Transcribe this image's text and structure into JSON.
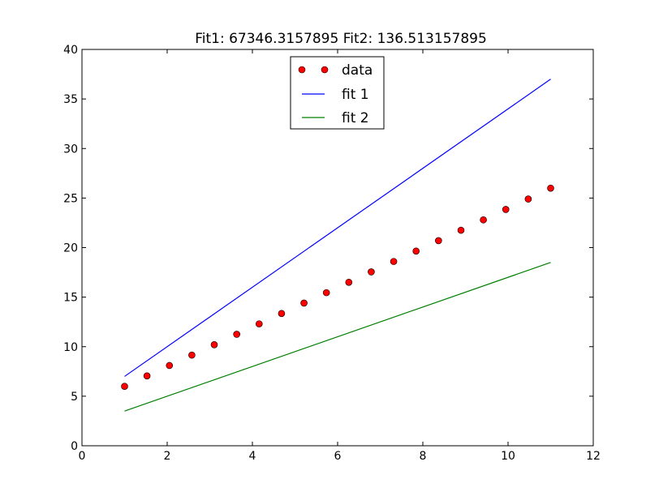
{
  "chart_data": {
    "type": "line",
    "title": "Fit1: 67346.3157895 Fit2: 136.513157895",
    "xlabel": "",
    "ylabel": "",
    "xlim": [
      0,
      12
    ],
    "ylim": [
      0,
      40
    ],
    "x_ticks": [
      0,
      2,
      4,
      6,
      8,
      10,
      12
    ],
    "x_tick_labels": [
      "0",
      "2",
      "4",
      "6",
      "8",
      "10",
      "12"
    ],
    "y_ticks": [
      0,
      5,
      10,
      15,
      20,
      25,
      30,
      35,
      40
    ],
    "y_tick_labels": [
      "0",
      "5",
      "10",
      "15",
      "20",
      "25",
      "30",
      "35",
      "40"
    ],
    "grid": false,
    "legend_position": "top-center",
    "series": [
      {
        "name": "data",
        "style": "markers",
        "color": "#ff0000",
        "x": [
          1.0,
          1.526,
          2.053,
          2.579,
          3.105,
          3.632,
          4.158,
          4.684,
          5.211,
          5.737,
          6.263,
          6.789,
          7.316,
          7.842,
          8.368,
          8.895,
          9.421,
          9.947,
          10.474,
          11.0
        ],
        "y": [
          6.0,
          7.05,
          8.1,
          9.15,
          10.2,
          11.25,
          12.3,
          13.35,
          14.4,
          15.45,
          16.5,
          17.55,
          18.6,
          19.65,
          20.7,
          21.75,
          22.8,
          23.85,
          24.9,
          26.0
        ]
      },
      {
        "name": "fit 1",
        "style": "line",
        "color": "#0000ff",
        "x": [
          1.0,
          11.0
        ],
        "y": [
          7.0,
          37.0
        ]
      },
      {
        "name": "fit 2",
        "style": "line",
        "color": "#008000",
        "x": [
          1.0,
          11.0
        ],
        "y": [
          3.5,
          18.5
        ]
      }
    ]
  }
}
